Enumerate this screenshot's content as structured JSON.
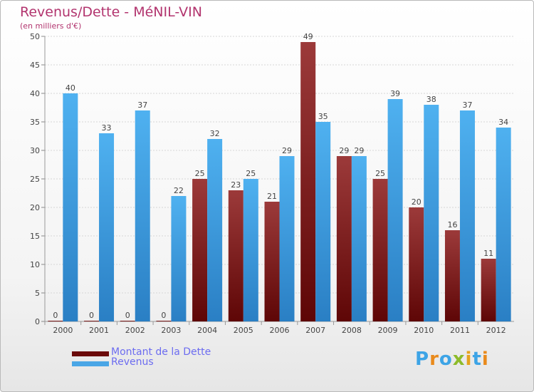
{
  "header": {
    "title": "Revenus/Dette - MéNIL-VIN",
    "subtitle": "(en milliers d'€)"
  },
  "chart_data": {
    "type": "bar",
    "title": "Revenus/Dette - MéNIL-VIN",
    "subtitle": "(en milliers d'€)",
    "xlabel": "",
    "ylabel": "",
    "ylim": [
      0,
      50
    ],
    "yticks": [
      0,
      5,
      10,
      15,
      20,
      25,
      30,
      35,
      40,
      45,
      50
    ],
    "grid": true,
    "categories": [
      "2000",
      "2001",
      "2002",
      "2003",
      "2004",
      "2005",
      "2006",
      "2007",
      "2008",
      "2009",
      "2010",
      "2011",
      "2012"
    ],
    "series": [
      {
        "name": "Montant de la Dette",
        "color": "#8b2b2b",
        "values": [
          0,
          0,
          0,
          0,
          25,
          23,
          21,
          49,
          29,
          25,
          20,
          16,
          11
        ]
      },
      {
        "name": "Revenus",
        "color": "#3d9ee0",
        "values": [
          40,
          33,
          37,
          22,
          32,
          25,
          29,
          35,
          29,
          39,
          38,
          37,
          34
        ]
      }
    ],
    "legend_position": "bottom-left"
  },
  "legend": {
    "items": [
      {
        "label": "Montant de la Dette",
        "color": "#6b0a0a"
      },
      {
        "label": "Revenus",
        "color": "#4aa6e6"
      }
    ]
  },
  "logo": {
    "text": "Proxiti",
    "letters": [
      "P",
      "r",
      "o",
      "x",
      "i",
      "t",
      "i"
    ]
  }
}
